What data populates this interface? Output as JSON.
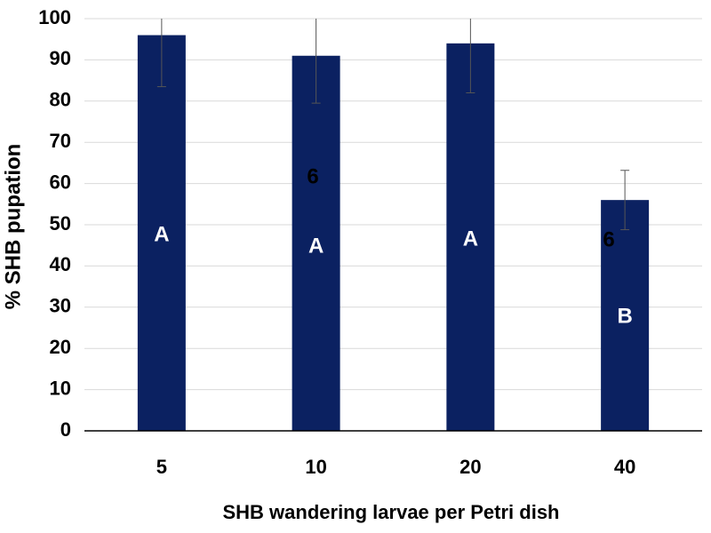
{
  "chart_data": {
    "type": "bar",
    "x_label": "SHB wandering larvae per Petri dish",
    "y_label": "% SHB pupation",
    "categories": [
      "5",
      "10",
      "20",
      "40"
    ],
    "values": [
      96,
      91,
      94,
      56
    ],
    "errors": [
      12.5,
      11.5,
      12,
      7.2
    ],
    "color": "#0b2161",
    "letters": [
      "A",
      "A",
      "A",
      "B"
    ],
    "annotations": [
      "6",
      "6"
    ],
    "ylim": [
      0,
      100
    ],
    "yticks": [
      0,
      10,
      20,
      30,
      40,
      50,
      60,
      70,
      80,
      90,
      100
    ],
    "grid": true
  }
}
